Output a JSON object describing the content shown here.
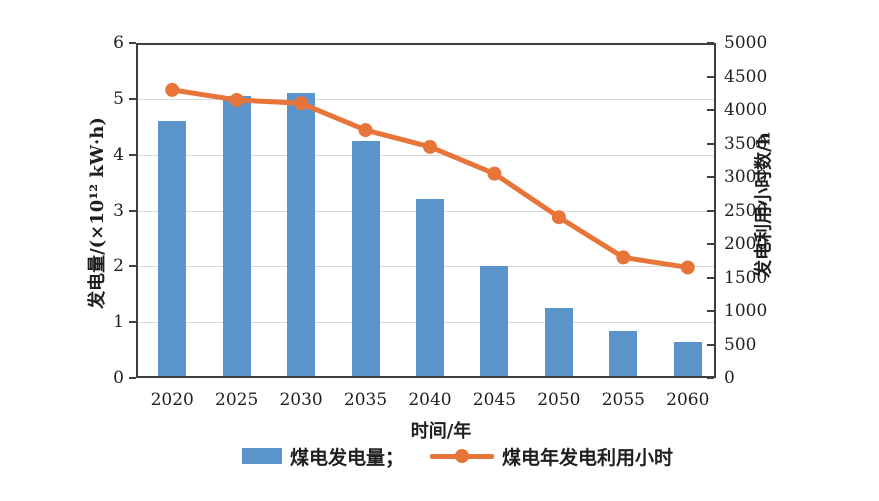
{
  "colors": {
    "bar_blue": "#5b94ca",
    "line_orange": "#e7753a",
    "axis": "#3f3f3f",
    "grid": "#d9d9d9",
    "text": "#1f1f1f",
    "background": "#ffffff"
  },
  "chart_data": {
    "type": "combo",
    "categories": [
      "2020",
      "2025",
      "2030",
      "2035",
      "2040",
      "2045",
      "2050",
      "2055",
      "2060"
    ],
    "series": [
      {
        "name": "煤电发电量；",
        "type": "bar",
        "axis": "left",
        "color": "#5b94ca",
        "values": [
          4.6,
          5.05,
          5.1,
          4.25,
          3.2,
          2.0,
          1.25,
          0.85,
          0.65
        ]
      },
      {
        "name": "煤电年发电利用小时",
        "type": "line",
        "axis": "right",
        "color": "#e7753a",
        "values": [
          4300,
          4150,
          4100,
          3700,
          3450,
          3050,
          2400,
          1800,
          1650
        ]
      }
    ],
    "left_axis": {
      "label": "发电量/(×10¹² kW·h)",
      "min": 0,
      "max": 6,
      "tick_labels_top_down": [
        "6",
        "5",
        "4",
        "3",
        "2",
        "1",
        "0"
      ]
    },
    "right_axis": {
      "label": "发电利用小时数/h",
      "min": 0,
      "max": 5000,
      "tick_labels_top_down": [
        "5000",
        "4500",
        "4000",
        "3500",
        "3000",
        "2500",
        "2000",
        "1500",
        "1000",
        "500",
        "0"
      ]
    },
    "x_axis": {
      "label": "时间/年"
    },
    "grid_at_left_values": [
      1,
      2,
      3,
      4,
      5
    ],
    "legend_position": "bottom"
  }
}
